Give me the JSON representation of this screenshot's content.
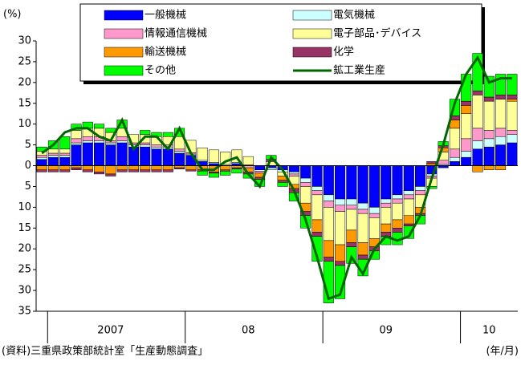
{
  "chart_data": {
    "type": "stacked-bar-line",
    "y_label": "(%)",
    "source": "(資料)三重県政策部統計室「生産動態調査」",
    "x_unit": "(年/月)",
    "categories": [
      null,
      null,
      null,
      null,
      null,
      null,
      "2007",
      null,
      null,
      null,
      null,
      null,
      null,
      null,
      null,
      null,
      null,
      null,
      "08",
      null,
      null,
      null,
      null,
      null,
      null,
      null,
      null,
      null,
      null,
      null,
      "09",
      null,
      null,
      null,
      null,
      null,
      null,
      null,
      null,
      "10",
      null,
      null
    ],
    "ylim": [
      -35,
      30
    ],
    "yticks": [
      30,
      25,
      20,
      15,
      10,
      5,
      0,
      {
        "value": -5,
        "label": "5"
      },
      {
        "value": -10,
        "label": "10"
      },
      {
        "value": -15,
        "label": "15"
      },
      {
        "value": -20,
        "label": "20"
      },
      {
        "value": -25,
        "label": "25"
      },
      {
        "value": -30,
        "label": "30"
      },
      {
        "value": -35,
        "label": "35"
      }
    ],
    "series": [
      {
        "name": "一般機械",
        "color": "#0000ff",
        "values": [
          1.5,
          2,
          2,
          5,
          5.5,
          5.5,
          5,
          5.5,
          4.5,
          4.5,
          4,
          4,
          3,
          2.5,
          1,
          0.5,
          0,
          0.5,
          0,
          -1,
          -0.5,
          -1,
          -1.5,
          -3,
          -5,
          -7,
          -8,
          -8,
          -9,
          -10,
          -8,
          -7,
          -6,
          -5,
          -2,
          -0.5,
          1,
          2,
          4,
          4.5,
          5,
          5.5
        ]
      },
      {
        "name": "電気機械",
        "color": "#ccffff",
        "values": [
          0.5,
          0.5,
          0.5,
          0.5,
          0.5,
          0.5,
          0.5,
          0.5,
          0.5,
          0.5,
          0.5,
          0.5,
          0.5,
          0.3,
          0.3,
          0.3,
          0.3,
          0.3,
          0.2,
          -0.3,
          -0.5,
          -0.5,
          -0.5,
          -1,
          -1,
          -1.5,
          -1.5,
          -1.5,
          -1.5,
          -1.5,
          -1,
          -1,
          -1,
          -1,
          -0.5,
          0.3,
          1,
          1.5,
          2,
          2,
          2,
          2
        ]
      },
      {
        "name": "情報通信機械",
        "color": "#ff99cc",
        "values": [
          0.5,
          0.5,
          0.5,
          1,
          1,
          1,
          0.5,
          1,
          0.5,
          0.5,
          0.5,
          0.5,
          0.5,
          0.3,
          0,
          0,
          0,
          0,
          -0.5,
          -0.5,
          0,
          0,
          -0.5,
          -1,
          -1,
          -1.5,
          -1.5,
          -1,
          -1,
          -1,
          -1,
          -1,
          -1,
          -1,
          -0.5,
          1,
          2,
          3,
          3,
          2,
          2,
          1
        ]
      },
      {
        "name": "電子部品･デバイス",
        "color": "#ffff99",
        "values": [
          1,
          1,
          1,
          2,
          2,
          2,
          2,
          2,
          2,
          2,
          2,
          2,
          3,
          3,
          3,
          3,
          3,
          3,
          2,
          0,
          1,
          -1,
          -2,
          -4,
          -6,
          -8,
          -8,
          -5,
          -7,
          -5,
          -4,
          -4,
          -4,
          -3,
          -2,
          2,
          5,
          6,
          8,
          7,
          7,
          7
        ]
      },
      {
        "name": "輸送機械",
        "color": "#ff9900",
        "values": [
          -1,
          -1,
          -1,
          -0.5,
          -1,
          -1.5,
          -2,
          -1,
          -1,
          -1,
          -1,
          -1,
          -0.5,
          -1,
          -1,
          -1.5,
          -1,
          -0.5,
          -1,
          -1,
          0,
          -1,
          -1,
          -2,
          -3,
          -4,
          -4,
          -3,
          -3,
          -2,
          -2,
          -2,
          -2,
          -1.5,
          0.5,
          1,
          2,
          2,
          -1.5,
          -1,
          -1,
          0.5
        ]
      },
      {
        "name": "化学",
        "color": "#993366",
        "values": [
          -0.5,
          -0.5,
          -0.5,
          -0.5,
          -0.5,
          -0.5,
          -0.5,
          -0.5,
          -0.5,
          -0.5,
          -0.5,
          -0.5,
          -0.3,
          -0.3,
          -0.3,
          -0.3,
          -0.3,
          -0.3,
          -0.5,
          -0.5,
          0.5,
          -0.5,
          -1,
          -1,
          -1,
          -1,
          -1,
          -1,
          -1,
          -1,
          -1,
          -1,
          -0.5,
          -0.5,
          0.5,
          0.5,
          1,
          1,
          1,
          1,
          1,
          1
        ]
      },
      {
        "name": "その他",
        "color": "#00ff00",
        "values": [
          1,
          2,
          3,
          1.5,
          1.5,
          1,
          1,
          2,
          0,
          1,
          1,
          1,
          2,
          0,
          -1,
          -1,
          -1,
          -1,
          -1,
          -1.7,
          1,
          -1,
          -2,
          -3,
          -6,
          -10,
          -8,
          -4,
          -4,
          -2,
          -2,
          -3,
          -3,
          -2,
          -0.5,
          1,
          4,
          6.5,
          9,
          5,
          5,
          5
        ]
      }
    ],
    "line": {
      "name": "鉱工業生産",
      "color": "#006600",
      "values": [
        3,
        5,
        8,
        9,
        9,
        7,
        6,
        11,
        4,
        7,
        7,
        4,
        9,
        3,
        -1,
        -1,
        1,
        2,
        -2,
        -5,
        2,
        -1,
        -6,
        -13,
        -22,
        -32,
        -31,
        -22,
        -26,
        -20,
        -17,
        -18,
        -17,
        -12,
        -3,
        5,
        15,
        22,
        26,
        20,
        21,
        21
      ]
    }
  }
}
